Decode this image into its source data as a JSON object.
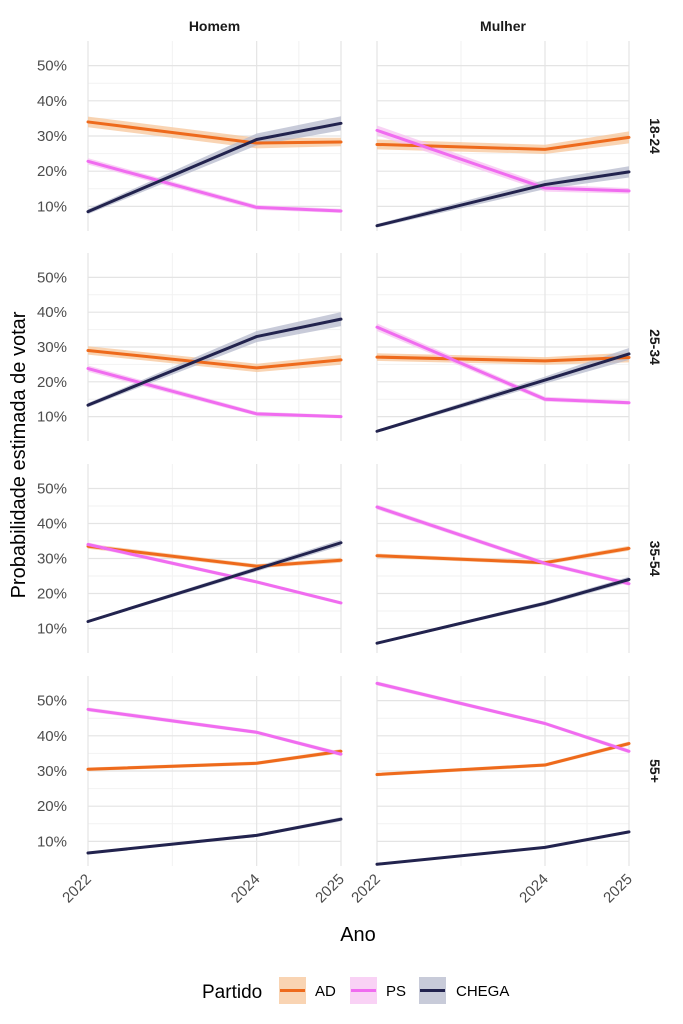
{
  "chart_data": {
    "type": "line",
    "xlabel": "Ano",
    "ylabel": "Probabilidade estimada de votar",
    "x": [
      2022,
      2024,
      2025
    ],
    "x_ticks": [
      "2022",
      "2024",
      "2025"
    ],
    "y_ticks": [
      0.1,
      0.2,
      0.3,
      0.4,
      0.5
    ],
    "y_tick_labels": [
      "10%",
      "20%",
      "30%",
      "40%",
      "50%"
    ],
    "ylim": [
      0.03,
      0.57
    ],
    "columns": [
      "Homem",
      "Mulher"
    ],
    "rows": [
      "18-24",
      "25-34",
      "35-54",
      "55+"
    ],
    "legend": {
      "title": "Partido",
      "position": "bottom",
      "entries": [
        "AD",
        "PS",
        "CHEGA"
      ]
    },
    "colors": {
      "AD": "#ee6a1c",
      "PS": "#f06cf0",
      "CHEGA": "#22234e"
    },
    "band_colors": {
      "AD": "#f7c59a",
      "PS": "#f7c3f2",
      "CHEGA": "#b6b9cc"
    },
    "panels": [
      {
        "row": "18-24",
        "col": "Homem",
        "series": [
          {
            "name": "AD",
            "values": [
              0.34,
              0.28,
              0.283
            ],
            "band": [
              0.015,
              0.015,
              0.012
            ]
          },
          {
            "name": "PS",
            "values": [
              0.228,
              0.097,
              0.087
            ],
            "band": [
              0.009,
              0.007,
              0.006
            ]
          },
          {
            "name": "CHEGA",
            "values": [
              0.085,
              0.29,
              0.336
            ],
            "band": [
              0.007,
              0.017,
              0.02
            ]
          }
        ]
      },
      {
        "row": "18-24",
        "col": "Mulher",
        "series": [
          {
            "name": "AD",
            "values": [
              0.276,
              0.262,
              0.296
            ],
            "band": [
              0.014,
              0.013,
              0.017
            ]
          },
          {
            "name": "PS",
            "values": [
              0.316,
              0.152,
              0.144
            ],
            "band": [
              0.014,
              0.01,
              0.008
            ]
          },
          {
            "name": "CHEGA",
            "values": [
              0.045,
              0.162,
              0.198
            ],
            "band": [
              0.005,
              0.013,
              0.016
            ]
          }
        ]
      },
      {
        "row": "25-34",
        "col": "Homem",
        "series": [
          {
            "name": "AD",
            "values": [
              0.29,
              0.24,
              0.263
            ],
            "band": [
              0.012,
              0.012,
              0.014
            ]
          },
          {
            "name": "PS",
            "values": [
              0.238,
              0.108,
              0.1
            ],
            "band": [
              0.009,
              0.006,
              0.005
            ]
          },
          {
            "name": "CHEGA",
            "values": [
              0.133,
              0.33,
              0.38
            ],
            "band": [
              0.006,
              0.016,
              0.02
            ]
          }
        ]
      },
      {
        "row": "25-34",
        "col": "Mulher",
        "series": [
          {
            "name": "AD",
            "values": [
              0.271,
              0.26,
              0.27
            ],
            "band": [
              0.011,
              0.011,
              0.014
            ]
          },
          {
            "name": "PS",
            "values": [
              0.357,
              0.15,
              0.14
            ],
            "band": [
              0.011,
              0.007,
              0.006
            ]
          },
          {
            "name": "CHEGA",
            "values": [
              0.058,
              0.205,
              0.28
            ],
            "band": [
              0.004,
              0.01,
              0.017
            ]
          }
        ]
      },
      {
        "row": "35-54",
        "col": "Homem",
        "series": [
          {
            "name": "AD",
            "values": [
              0.335,
              0.278,
              0.295
            ],
            "band": [
              0.007,
              0.006,
              0.007
            ]
          },
          {
            "name": "PS",
            "values": [
              0.34,
              0.233,
              0.173
            ],
            "band": [
              0.006,
              0.005,
              0.005
            ]
          },
          {
            "name": "CHEGA",
            "values": [
              0.12,
              0.27,
              0.345
            ],
            "band": [
              0.004,
              0.007,
              0.009
            ]
          }
        ]
      },
      {
        "row": "35-54",
        "col": "Mulher",
        "series": [
          {
            "name": "AD",
            "values": [
              0.308,
              0.288,
              0.329
            ],
            "band": [
              0.006,
              0.006,
              0.007
            ]
          },
          {
            "name": "PS",
            "values": [
              0.447,
              0.286,
              0.228
            ],
            "band": [
              0.007,
              0.006,
              0.006
            ]
          },
          {
            "name": "CHEGA",
            "values": [
              0.058,
              0.172,
              0.24
            ],
            "band": [
              0.003,
              0.006,
              0.008
            ]
          }
        ]
      },
      {
        "row": "55+",
        "col": "Homem",
        "series": [
          {
            "name": "AD",
            "values": [
              0.305,
              0.322,
              0.356
            ],
            "band": [
              0.005,
              0.005,
              0.006
            ]
          },
          {
            "name": "PS",
            "values": [
              0.475,
              0.41,
              0.348
            ],
            "band": [
              0.006,
              0.005,
              0.006
            ]
          },
          {
            "name": "CHEGA",
            "values": [
              0.067,
              0.117,
              0.163
            ],
            "band": [
              0.003,
              0.004,
              0.006
            ]
          }
        ]
      },
      {
        "row": "55+",
        "col": "Mulher",
        "series": [
          {
            "name": "AD",
            "values": [
              0.29,
              0.317,
              0.378
            ],
            "band": [
              0.005,
              0.005,
              0.006
            ]
          },
          {
            "name": "PS",
            "values": [
              0.549,
              0.435,
              0.356
            ],
            "band": [
              0.006,
              0.005,
              0.006
            ]
          },
          {
            "name": "CHEGA",
            "values": [
              0.035,
              0.083,
              0.127
            ],
            "band": [
              0.002,
              0.003,
              0.004
            ]
          }
        ]
      }
    ]
  }
}
